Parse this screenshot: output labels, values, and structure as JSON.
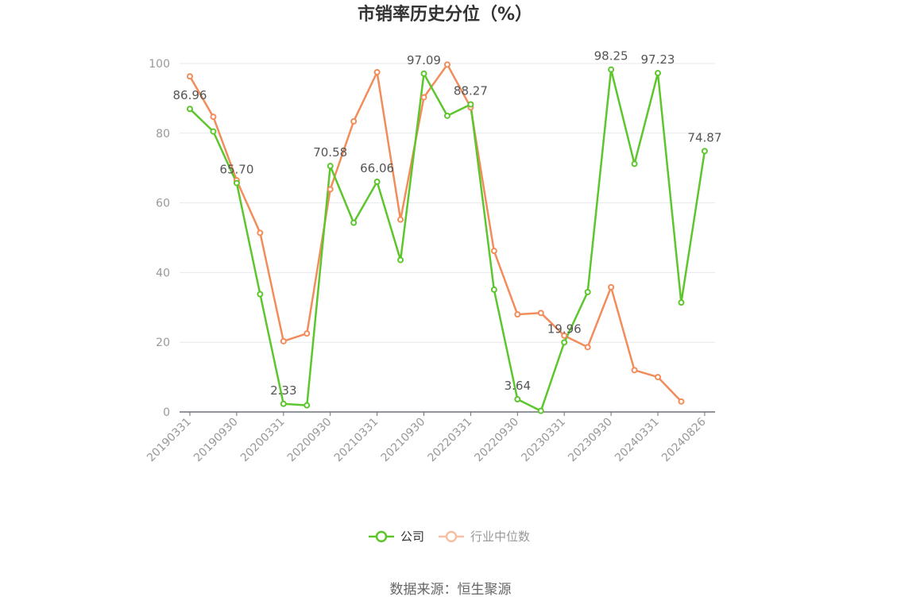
{
  "chart_data": {
    "type": "line",
    "title": "市销率历史分位（%）",
    "xlabel": "",
    "ylabel": "",
    "ylim": [
      0,
      100
    ],
    "yticks": [
      0,
      20,
      40,
      60,
      80,
      100
    ],
    "x": [
      "20190331",
      "20190630",
      "20190930",
      "20191231",
      "20200331",
      "20200630",
      "20200930",
      "20201231",
      "20210331",
      "20210630",
      "20210930",
      "20211231",
      "20220331",
      "20220630",
      "20220930",
      "20221231",
      "20230331",
      "20230630",
      "20230930",
      "20231231",
      "20240331",
      "20240630",
      "20240826"
    ],
    "x_tick_labels": [
      "20190331",
      "20190930",
      "20200331",
      "20200930",
      "20210331",
      "20210930",
      "20220331",
      "20220930",
      "20230331",
      "20230930",
      "20240331",
      "20240826"
    ],
    "grid": true,
    "legend_position": "bottom",
    "series": [
      {
        "name": "公司",
        "color": "#5cc62c",
        "values": [
          86.96,
          80.5,
          65.7,
          33.8,
          2.33,
          1.9,
          70.58,
          54.3,
          66.06,
          43.6,
          97.09,
          85.0,
          88.27,
          35.1,
          3.64,
          0.3,
          19.96,
          34.4,
          98.25,
          71.2,
          97.23,
          31.4,
          74.87
        ]
      },
      {
        "name": "行业中位数",
        "color": "#f28c5a",
        "values": [
          96.3,
          84.7,
          66.5,
          51.4,
          20.3,
          22.5,
          63.9,
          83.4,
          97.5,
          55.2,
          90.3,
          99.7,
          87.4,
          46.2,
          28.0,
          28.4,
          21.9,
          18.6,
          35.8,
          12.0,
          10.0,
          3.0,
          null
        ]
      }
    ],
    "annotations": [
      {
        "series": 0,
        "index": 0,
        "text": "86.96"
      },
      {
        "series": 0,
        "index": 2,
        "text": "65.70"
      },
      {
        "series": 0,
        "index": 4,
        "text": "2.33"
      },
      {
        "series": 0,
        "index": 6,
        "text": "70.58"
      },
      {
        "series": 0,
        "index": 8,
        "text": "66.06"
      },
      {
        "series": 0,
        "index": 10,
        "text": "97.09"
      },
      {
        "series": 0,
        "index": 12,
        "text": "88.27"
      },
      {
        "series": 0,
        "index": 14,
        "text": "3.64"
      },
      {
        "series": 0,
        "index": 16,
        "text": "19.96"
      },
      {
        "series": 0,
        "index": 18,
        "text": "98.25"
      },
      {
        "series": 0,
        "index": 20,
        "text": "97.23"
      },
      {
        "series": 0,
        "index": 22,
        "text": "74.87"
      }
    ]
  },
  "footer": {
    "source": "数据来源：恒生聚源"
  },
  "colors": {
    "axis": "#6e7079",
    "grid": "#e6e8ee",
    "legend_inactive_text": "#999999",
    "legend_active_text": "#333333"
  }
}
